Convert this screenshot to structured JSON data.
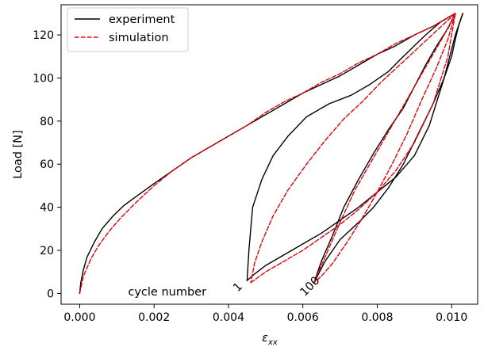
{
  "chart_data": {
    "type": "line",
    "title": "",
    "xlabel": "ε",
    "xlabel_subscript": "xx",
    "ylabel": "Load [N]",
    "xlim": [
      -0.0005,
      0.0107
    ],
    "ylim": [
      -5,
      134
    ],
    "xticks": [
      0.0,
      0.002,
      0.004,
      0.006,
      0.008,
      0.01
    ],
    "xtick_labels": [
      "0.000",
      "0.002",
      "0.004",
      "0.006",
      "0.008",
      "0.010"
    ],
    "yticks": [
      0,
      20,
      40,
      60,
      80,
      100,
      120
    ],
    "ytick_labels": [
      "0",
      "20",
      "40",
      "60",
      "80",
      "100",
      "120"
    ],
    "grid": false,
    "legend_position": "top-left",
    "colors": {
      "experiment": "#000000",
      "simulation": "#e8000b"
    },
    "series": [
      {
        "name": "experiment",
        "style": "solid",
        "color": "#000000",
        "segments": [
          {
            "x": [
              0.0,
              3e-05,
              0.0001,
              0.0002,
              0.0004,
              0.0006,
              0.0009,
              0.0012,
              0.0016,
              0.002,
              0.0025,
              0.003,
              0.0035,
              0.004,
              0.0045,
              0.005,
              0.0055,
              0.006,
              0.0065,
              0.007,
              0.0075,
              0.008,
              0.0085,
              0.009,
              0.0095,
              0.0101
            ],
            "y": [
              0,
              5,
              11,
              17,
              24,
              30,
              36,
              41,
              46,
              51,
              57,
              63,
              68,
              73,
              78,
              83,
              88,
              93,
              97,
              101,
              106,
              111,
              115,
              120,
              124,
              130
            ]
          },
          {
            "x": [
              0.0101,
              0.0097,
              0.0093,
              0.009,
              0.0087,
              0.0083,
              0.0078,
              0.0073,
              0.0067,
              0.0061,
              0.0056,
              0.0052,
              0.0049,
              0.00465,
              0.00455,
              0.0045
            ],
            "y": [
              130,
              126,
              120,
              115,
              110,
              103,
              97,
              92,
              88,
              82,
              73,
              64,
              53,
              40,
              20,
              6
            ]
          },
          {
            "x": [
              0.0045,
              0.0047,
              0.005,
              0.0055,
              0.006,
              0.0065,
              0.007,
              0.0075,
              0.008,
              0.0085,
              0.009,
              0.0094,
              0.0098,
              0.0101,
              0.0103
            ],
            "y": [
              6,
              9,
              13,
              18,
              23,
              28,
              34,
              40,
              47,
              54,
              64,
              78,
              100,
              120,
              130
            ]
          },
          {
            "x": [
              0.0103,
              0.0102,
              0.0101,
              0.01,
              0.0098,
              0.0095,
              0.0091,
              0.0087,
              0.0083,
              0.0079,
              0.0075,
              0.007,
              0.0066,
              0.0063
            ],
            "y": [
              130,
              125,
              118,
              110,
              100,
              88,
              74,
              60,
              49,
              40,
              33,
              25,
              15,
              5
            ]
          },
          {
            "x": [
              0.0063,
              0.0065,
              0.0068,
              0.0071,
              0.0075,
              0.0079,
              0.0083,
              0.0087,
              0.009,
              0.0093,
              0.0096,
              0.0099,
              0.0101
            ],
            "y": [
              5,
              15,
              27,
              40,
              53,
              65,
              76,
              86,
              96,
              106,
              115,
              123,
              130
            ]
          }
        ]
      },
      {
        "name": "simulation",
        "style": "dashed",
        "color": "#e8000b",
        "segments": [
          {
            "x": [
              0.0,
              0.0001,
              0.0003,
              0.0005,
              0.0008,
              0.0011,
              0.0015,
              0.002,
              0.0025,
              0.003,
              0.0035,
              0.004,
              0.0045,
              0.005,
              0.0055,
              0.006,
              0.0065,
              0.007,
              0.0075,
              0.008,
              0.0085,
              0.009,
              0.0095,
              0.0101
            ],
            "y": [
              0,
              8,
              16,
              22,
              29,
              35,
              42,
              50,
              57,
              63,
              68,
              73,
              78,
              84,
              89,
              93,
              98,
              102,
              107,
              111,
              116,
              120,
              124,
              130
            ]
          },
          {
            "x": [
              0.0101,
              0.0096,
              0.0091,
              0.0086,
              0.0081,
              0.0076,
              0.0071,
              0.0066,
              0.0061,
              0.0056,
              0.0052,
              0.0049,
              0.0047,
              0.0046
            ],
            "y": [
              130,
              122,
              114,
              106,
              98,
              89,
              81,
              71,
              60,
              48,
              36,
              24,
              14,
              5
            ]
          },
          {
            "x": [
              0.0046,
              0.005,
              0.0055,
              0.006,
              0.0065,
              0.007,
              0.0075,
              0.008,
              0.0085,
              0.009,
              0.0095,
              0.0099,
              0.0101
            ],
            "y": [
              5,
              10,
              15,
              20,
              26,
              32,
              39,
              47,
              57,
              70,
              88,
              110,
              130
            ]
          },
          {
            "x": [
              0.0101,
              0.0099,
              0.0096,
              0.0092,
              0.0088,
              0.0084,
              0.008,
              0.0076,
              0.0072,
              0.0068,
              0.0065,
              0.0063
            ],
            "y": [
              130,
              118,
              105,
              90,
              74,
              60,
              47,
              35,
              24,
              14,
              8,
              5
            ]
          },
          {
            "x": [
              0.0063,
              0.0066,
              0.007,
              0.0074,
              0.0078,
              0.0082,
              0.0086,
              0.009,
              0.0094,
              0.0098,
              0.0101
            ],
            "y": [
              5,
              17,
              33,
              48,
              60,
              72,
              84,
              96,
              108,
              120,
              130
            ]
          }
        ]
      }
    ],
    "annotations": [
      {
        "text": "cycle number",
        "x": 0.0013,
        "y": -1,
        "rotation": 0
      },
      {
        "text": "1",
        "x": 0.00425,
        "y": 0.5,
        "rotation": -45
      },
      {
        "text": "100",
        "x": 0.00605,
        "y": -1.5,
        "rotation": -45
      }
    ]
  }
}
